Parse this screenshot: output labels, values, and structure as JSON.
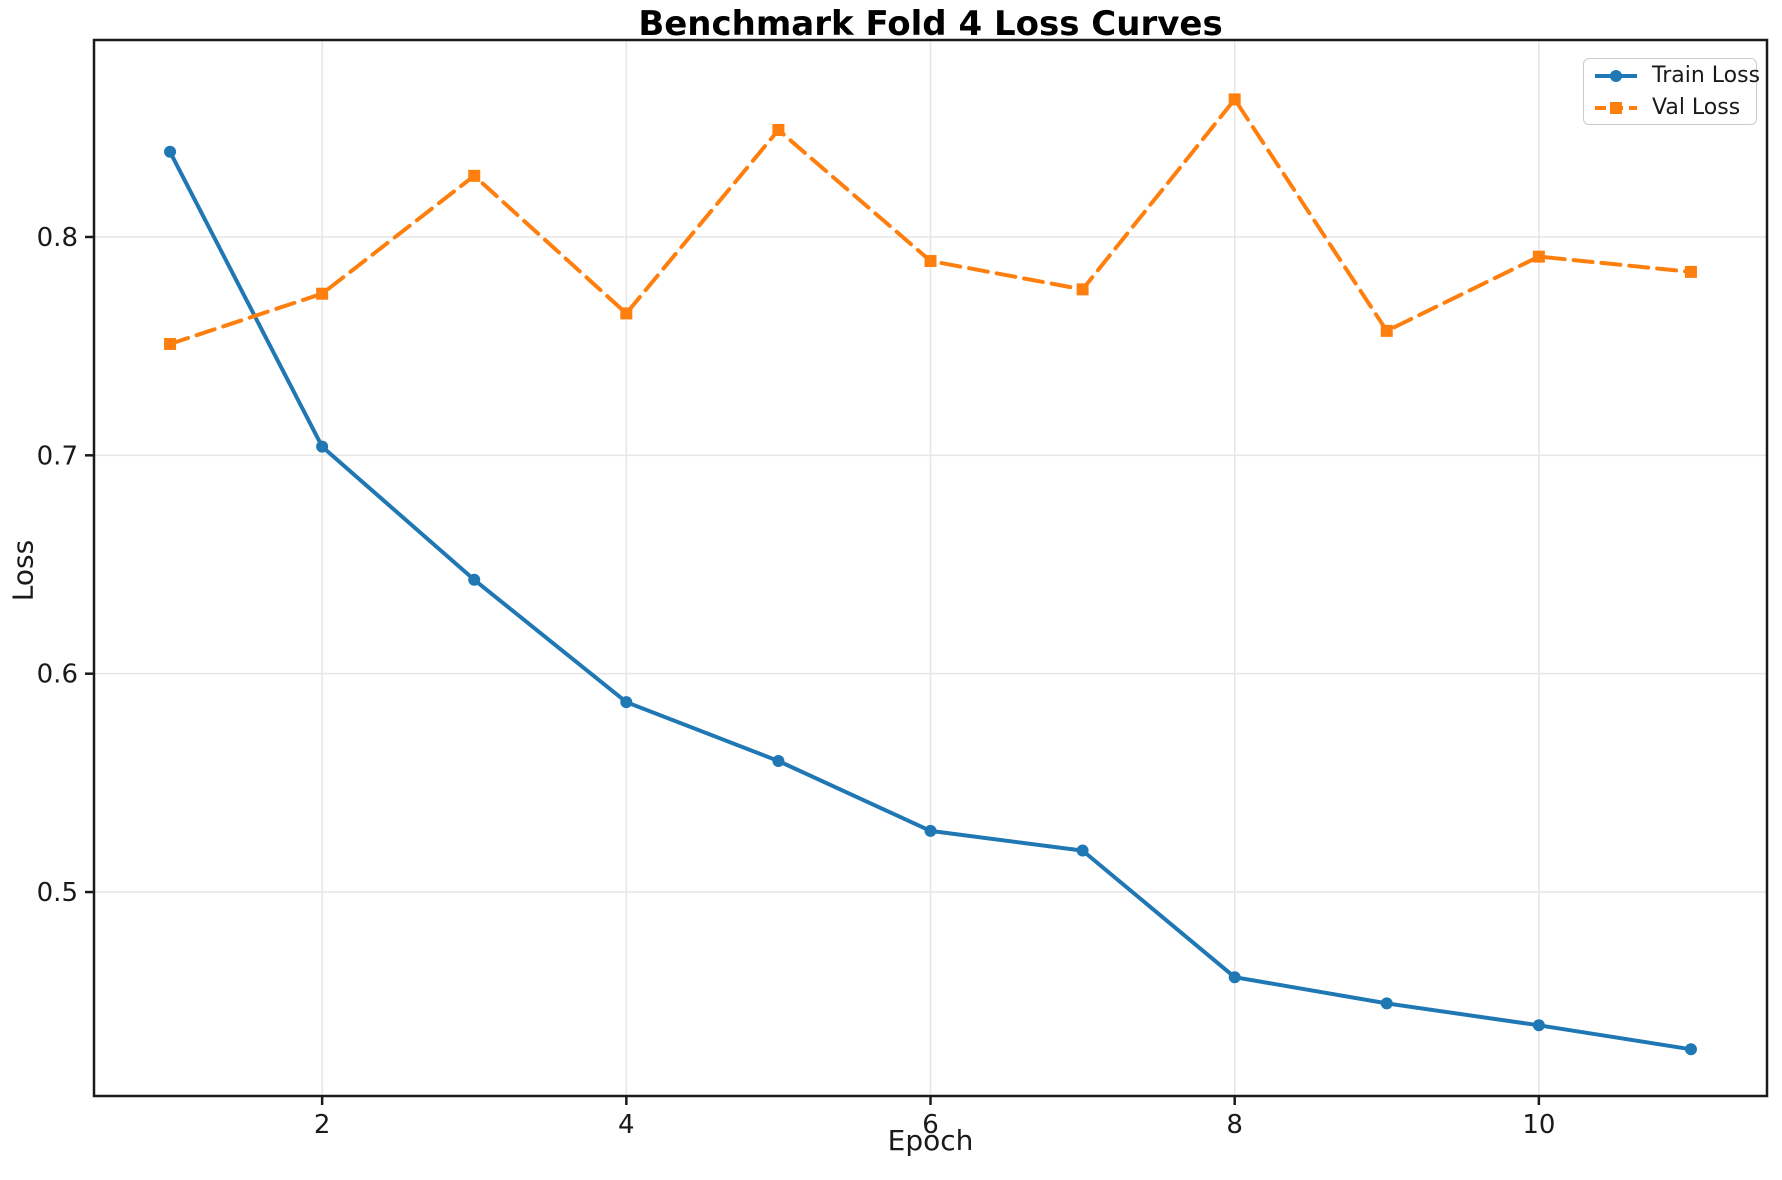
{
  "chart_data": {
    "type": "line",
    "title": "Benchmark Fold 4 Loss Curves",
    "xlabel": "Epoch",
    "ylabel": "Loss",
    "x": [
      1,
      2,
      3,
      4,
      5,
      6,
      7,
      8,
      9,
      10,
      11
    ],
    "series": [
      {
        "name": "Train Loss",
        "color": "#1f77b4",
        "line_style": "solid",
        "marker": "circle",
        "values": [
          0.839,
          0.704,
          0.643,
          0.587,
          0.56,
          0.528,
          0.519,
          0.461,
          0.449,
          0.439,
          0.428
        ]
      },
      {
        "name": "Val Loss",
        "color": "#ff7f0e",
        "line_style": "dashed",
        "marker": "square",
        "values": [
          0.751,
          0.774,
          0.828,
          0.765,
          0.849,
          0.789,
          0.776,
          0.863,
          0.757,
          0.791,
          0.784
        ]
      }
    ],
    "xlim": [
      0.5,
      11.5
    ],
    "ylim": [
      0.4066,
      0.8902
    ],
    "xticks": [
      2,
      4,
      6,
      8,
      10
    ],
    "xtick_labels": [
      "2",
      "4",
      "6",
      "8",
      "10"
    ],
    "yticks": [
      0.5,
      0.6,
      0.7,
      0.8
    ],
    "ytick_labels": [
      "0.5",
      "0.6",
      "0.7",
      "0.8"
    ],
    "grid": true,
    "legend": {
      "position": "upper right",
      "entries": [
        "Train Loss",
        "Val Loss"
      ]
    }
  },
  "style_colors": {
    "grid": "#e6e6e6",
    "spine": "#1a1a1a",
    "text": "#1a1a1a",
    "background": "#ffffff"
  }
}
